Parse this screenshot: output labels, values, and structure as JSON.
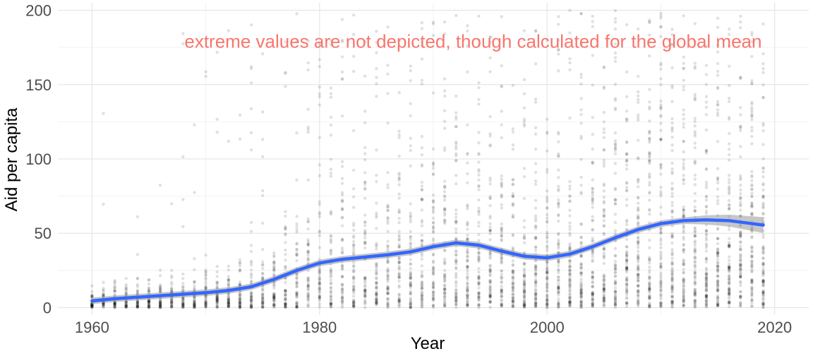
{
  "chart_data": {
    "type": "scatter",
    "title": "",
    "xlabel": "Year",
    "ylabel": "Aid per capita",
    "xlim": [
      1957,
      2023
    ],
    "ylim": [
      -5,
      205
    ],
    "x_ticks": [
      1960,
      1980,
      2000,
      2020
    ],
    "x_tick_labels": [
      "1960",
      "1980",
      "2000",
      "2020"
    ],
    "y_ticks": [
      0,
      50,
      100,
      150,
      200
    ],
    "y_tick_labels": [
      "0",
      "50",
      "100",
      "150",
      "200"
    ],
    "grid": true,
    "legend": "none",
    "annotation": {
      "text": "extreme values are not depicted, though calculated for the global mean",
      "x": 1993.5,
      "y": 179,
      "color": "#f8766d"
    },
    "points": {
      "description": "per-country yearly observations, 1960-2019, drawn semi-transparent grey",
      "color": "#000000",
      "opacity": 0.12
    },
    "series": [
      {
        "type": "smooth",
        "color": "#3366ff",
        "band_color": "#999999",
        "x": [
          1960,
          1962,
          1964,
          1966,
          1968,
          1970,
          1972,
          1974,
          1976,
          1978,
          1980,
          1982,
          1984,
          1986,
          1988,
          1990,
          1992,
          1994,
          1996,
          1998,
          2000,
          2002,
          2004,
          2006,
          2008,
          2010,
          2012,
          2014,
          2016,
          2018,
          2019
        ],
        "y": [
          4.5,
          6,
          7,
          8,
          9,
          10,
          11.5,
          14,
          19,
          25,
          30,
          32.5,
          34,
          35.5,
          37.5,
          41,
          43.5,
          42,
          38,
          34.5,
          33.5,
          36,
          41,
          47,
          52.5,
          56.5,
          58.5,
          59,
          58.5,
          56.5,
          55.5
        ]
      }
    ]
  }
}
